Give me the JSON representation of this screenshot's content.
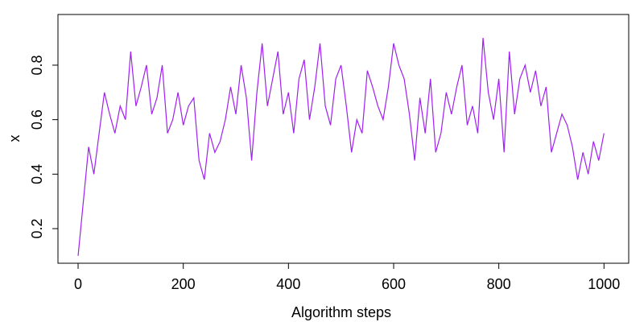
{
  "chart_data": {
    "type": "line",
    "xlabel": "Algorithm steps",
    "ylabel": "x",
    "x": [
      0,
      10,
      20,
      30,
      40,
      50,
      60,
      70,
      80,
      90,
      100,
      110,
      120,
      130,
      140,
      150,
      160,
      170,
      180,
      190,
      200,
      210,
      220,
      230,
      240,
      250,
      260,
      270,
      280,
      290,
      300,
      310,
      320,
      330,
      340,
      350,
      360,
      370,
      380,
      390,
      400,
      410,
      420,
      430,
      440,
      450,
      460,
      470,
      480,
      490,
      500,
      510,
      520,
      530,
      540,
      550,
      560,
      570,
      580,
      590,
      600,
      610,
      620,
      630,
      640,
      650,
      660,
      670,
      680,
      690,
      700,
      710,
      720,
      730,
      740,
      750,
      760,
      770,
      780,
      790,
      800,
      810,
      820,
      830,
      840,
      850,
      860,
      870,
      880,
      890,
      900,
      910,
      920,
      930,
      940,
      950,
      960,
      970,
      980,
      990,
      1000
    ],
    "series": [
      {
        "name": "x",
        "color": "#a020f0",
        "values": [
          0.1,
          0.3,
          0.5,
          0.4,
          0.55,
          0.7,
          0.62,
          0.55,
          0.65,
          0.6,
          0.85,
          0.65,
          0.72,
          0.8,
          0.62,
          0.68,
          0.8,
          0.55,
          0.6,
          0.7,
          0.58,
          0.65,
          0.68,
          0.45,
          0.38,
          0.55,
          0.48,
          0.52,
          0.6,
          0.72,
          0.62,
          0.8,
          0.68,
          0.45,
          0.7,
          0.88,
          0.65,
          0.75,
          0.85,
          0.62,
          0.7,
          0.55,
          0.75,
          0.82,
          0.6,
          0.72,
          0.88,
          0.65,
          0.58,
          0.75,
          0.8,
          0.65,
          0.48,
          0.6,
          0.55,
          0.78,
          0.72,
          0.65,
          0.6,
          0.72,
          0.88,
          0.8,
          0.75,
          0.62,
          0.45,
          0.68,
          0.55,
          0.75,
          0.48,
          0.55,
          0.7,
          0.62,
          0.72,
          0.8,
          0.58,
          0.65,
          0.55,
          0.9,
          0.7,
          0.6,
          0.75,
          0.48,
          0.85,
          0.62,
          0.75,
          0.8,
          0.7,
          0.78,
          0.65,
          0.72,
          0.48,
          0.55,
          0.62,
          0.58,
          0.5,
          0.38,
          0.48,
          0.4,
          0.52,
          0.45,
          0.55
        ]
      }
    ],
    "xlim": [
      -38.3,
      1047
    ],
    "ylim": [
      0.073,
      0.986
    ],
    "xticks": [
      0,
      200,
      400,
      600,
      800,
      1000
    ],
    "yticks": [
      0.2,
      0.4,
      0.6,
      0.8
    ]
  }
}
